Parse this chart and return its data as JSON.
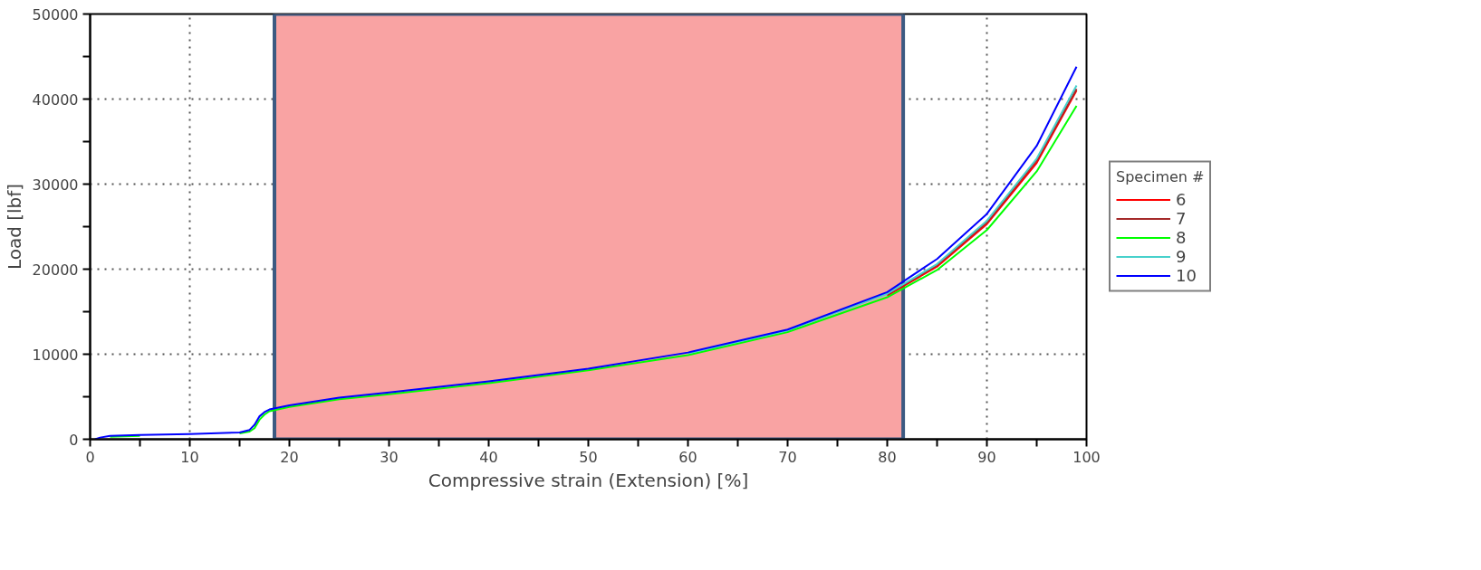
{
  "chart_data": {
    "type": "line",
    "xlabel": "Compressive strain (Extension) [%]",
    "ylabel": "Load [lbf]",
    "legend_title": "Specimen #",
    "x": [
      0.5,
      1,
      2,
      5,
      10,
      15,
      16,
      16.5,
      17,
      17.5,
      18,
      20,
      25,
      30,
      40,
      50,
      60,
      70,
      80,
      85,
      90,
      95,
      99
    ],
    "series": [
      {
        "name": "6",
        "color": "#ff0000",
        "values": [
          null,
          null,
          null,
          null,
          null,
          null,
          null,
          null,
          null,
          null,
          null,
          null,
          null,
          null,
          null,
          null,
          null,
          null,
          16900,
          20300,
          25300,
          32500,
          41000
        ]
      },
      {
        "name": "7",
        "color": "#a52a2a",
        "values": [
          null,
          null,
          null,
          null,
          null,
          null,
          null,
          null,
          null,
          null,
          null,
          null,
          null,
          null,
          null,
          null,
          null,
          null,
          17000,
          20500,
          25500,
          32800,
          41200
        ]
      },
      {
        "name": "8",
        "color": "#00ff00",
        "values": [
          null,
          null,
          300,
          400,
          null,
          700,
          900,
          1300,
          2300,
          2900,
          3300,
          3800,
          4700,
          5300,
          6600,
          8100,
          9900,
          12600,
          16700,
          19900,
          24600,
          31500,
          39200
        ]
      },
      {
        "name": "9",
        "color": "#48d1cc",
        "values": [
          null,
          null,
          null,
          null,
          null,
          null,
          null,
          null,
          null,
          null,
          null,
          null,
          null,
          null,
          null,
          null,
          10100,
          12800,
          17100,
          20600,
          25700,
          33000,
          41600
        ]
      },
      {
        "name": "10",
        "color": "#0000ff",
        "values": [
          0,
          200,
          400,
          500,
          600,
          800,
          1100,
          1700,
          2700,
          3200,
          3500,
          4000,
          4900,
          5500,
          6800,
          8300,
          10200,
          12900,
          17300,
          21200,
          26500,
          34500,
          43800
        ]
      }
    ],
    "xlim": [
      0,
      100
    ],
    "ylim": [
      0,
      50000
    ],
    "xticks": [
      0,
      {
        "value": 5,
        "label": null
      },
      10,
      {
        "value": 15,
        "label": null
      },
      20,
      {
        "value": 25,
        "label": null
      },
      30,
      {
        "value": 35,
        "label": null
      },
      40,
      {
        "value": 45,
        "label": null
      },
      50,
      {
        "value": 55,
        "label": null
      },
      60,
      {
        "value": 65,
        "label": null
      },
      70,
      {
        "value": 75,
        "label": null
      },
      80,
      {
        "value": 85,
        "label": null
      },
      90,
      {
        "value": 95,
        "label": null
      },
      100
    ],
    "yticks": [
      0,
      {
        "value": 5000,
        "label": null
      },
      10000,
      {
        "value": 15000,
        "label": null
      },
      20000,
      {
        "value": 25000,
        "label": null
      },
      30000,
      {
        "value": 35000,
        "label": null
      },
      40000,
      {
        "value": 45000,
        "label": null
      },
      50000
    ],
    "bands": [
      {
        "axis": "x",
        "from": 18.5,
        "to": 81.6,
        "color": "#f9a3a3"
      }
    ],
    "grid": true,
    "legend": "right",
    "line_style": "solid",
    "marker": "none"
  }
}
